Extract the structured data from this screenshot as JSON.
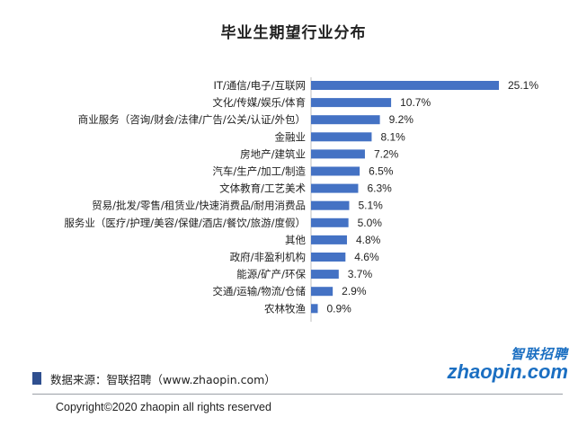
{
  "chart_data": {
    "type": "bar",
    "orientation": "horizontal",
    "title": "毕业生期望行业分布",
    "categories": [
      "IT/通信/电子/互联网",
      "文化/传媒/娱乐/体育",
      "商业服务（咨询/财会/法律/广告/公关/认证/外包）",
      "金融业",
      "房地产/建筑业",
      "汽车/生产/加工/制造",
      "文体教育/工艺美术",
      "贸易/批发/零售/租赁业/快速消费品/耐用消费品",
      "服务业（医疗/护理/美容/保健/酒店/餐饮/旅游/度假）",
      "其他",
      "政府/非盈利机构",
      "能源/矿产/环保",
      "交通/运输/物流/仓储",
      "农林牧渔"
    ],
    "values": [
      25.1,
      10.7,
      9.2,
      8.1,
      7.2,
      6.5,
      6.3,
      5.1,
      5.0,
      4.8,
      4.6,
      3.7,
      2.9,
      0.9
    ],
    "value_labels": [
      "25.1%",
      "10.7%",
      "9.2%",
      "8.1%",
      "7.2%",
      "6.5%",
      "6.3%",
      "5.1%",
      "5.0%",
      "4.8%",
      "4.6%",
      "3.7%",
      "2.9%",
      "0.9%"
    ],
    "unit": "%",
    "xlim": [
      0,
      25.1
    ],
    "grid": false,
    "legend": "none",
    "bar_color": "#4472c4"
  },
  "footer": {
    "source": "数据来源：智联招聘（www.zhaopin.com）",
    "copyright": "Copyright©2020  zhaopin all rights reserved"
  },
  "logo": {
    "cn": "智联招聘",
    "en": "zhaopin.com"
  }
}
